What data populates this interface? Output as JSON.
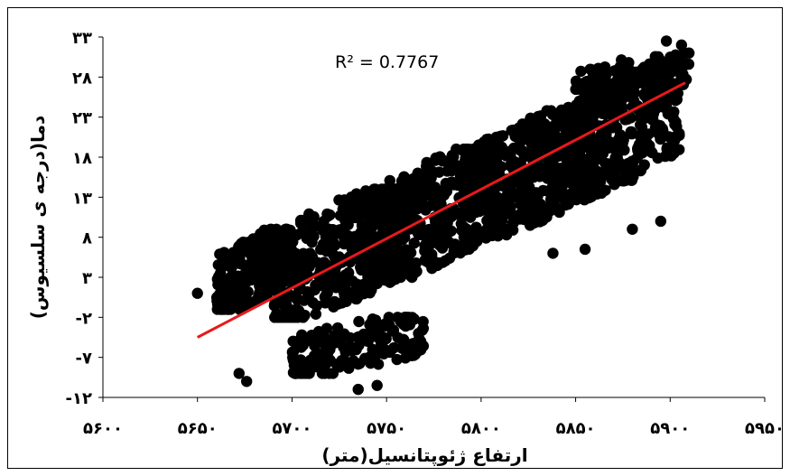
{
  "chart_data": {
    "type": "scatter",
    "title": "",
    "xlabel": "ارتفاع ژئوپتانسیل(متر)",
    "ylabel": "دما(درجه ی سلسیوس)",
    "xlim": [
      5600,
      5950
    ],
    "ylim": [
      -12,
      33
    ],
    "x_ticks": [
      5600,
      5650,
      5700,
      5750,
      5800,
      5850,
      5900,
      5950
    ],
    "x_tick_labels": [
      "۵۶۰۰",
      "۵۶۵۰",
      "۵۷۰۰",
      "۵۷۵۰",
      "۵۸۰۰",
      "۵۸۵۰",
      "۵۹۰۰",
      "۵۹۵۰"
    ],
    "y_ticks": [
      -12,
      -7,
      -2,
      3,
      8,
      13,
      18,
      23,
      28,
      33
    ],
    "y_tick_labels": [
      "-۱۲",
      "-۷",
      "-۲",
      "۳",
      "۸",
      "۱۳",
      "۱۸",
      "۲۳",
      "۲۸",
      "۳۳"
    ],
    "grid": false,
    "legend": "none",
    "annotation": "R² = 0.7767",
    "trendline": {
      "x": [
        5650,
        5908
      ],
      "y": [
        -4.5,
        27.3
      ],
      "r2": 0.7767,
      "color": "#e8191c"
    },
    "colors": {
      "points": "#000000",
      "trendline": "#e8191c",
      "axis": "#000000"
    },
    "clusters": [
      {
        "x": [
          5660,
          5700
        ],
        "y": [
          -1,
          9
        ],
        "n": 260
      },
      {
        "x": [
          5690,
          5760
        ],
        "y": [
          -2,
          14
        ],
        "n": 420
      },
      {
        "x": [
          5740,
          5810
        ],
        "y": [
          3,
          19
        ],
        "n": 420
      },
      {
        "x": [
          5790,
          5860
        ],
        "y": [
          8,
          24
        ],
        "n": 420
      },
      {
        "x": [
          5840,
          5905
        ],
        "y": [
          13,
          29
        ],
        "n": 380
      },
      {
        "x": [
          5700,
          5770
        ],
        "y": [
          -9,
          -2
        ],
        "n": 180
      },
      {
        "x": [
          5850,
          5910
        ],
        "y": [
          25,
          31
        ],
        "n": 120
      }
    ],
    "outliers": [
      {
        "x": [
          5650
        ],
        "y": [
          1
        ]
      },
      {
        "x": [
          5672
        ],
        "y": [
          -9
        ]
      },
      {
        "x": [
          5676
        ],
        "y": [
          -10
        ]
      },
      {
        "x": [
          5735
        ],
        "y": [
          -11
        ]
      },
      {
        "x": [
          5745
        ],
        "y": [
          -10.5
        ]
      },
      {
        "x": [
          5838
        ],
        "y": [
          6
        ]
      },
      {
        "x": [
          5855
        ],
        "y": [
          6.5
        ]
      },
      {
        "x": [
          5880
        ],
        "y": [
          9
        ]
      },
      {
        "x": [
          5895
        ],
        "y": [
          10
        ]
      },
      {
        "x": [
          5902
        ],
        "y": [
          18.5
        ]
      },
      {
        "x": [
          5898
        ],
        "y": [
          32.5
        ]
      },
      {
        "x": [
          5906
        ],
        "y": [
          32
        ]
      }
    ]
  }
}
